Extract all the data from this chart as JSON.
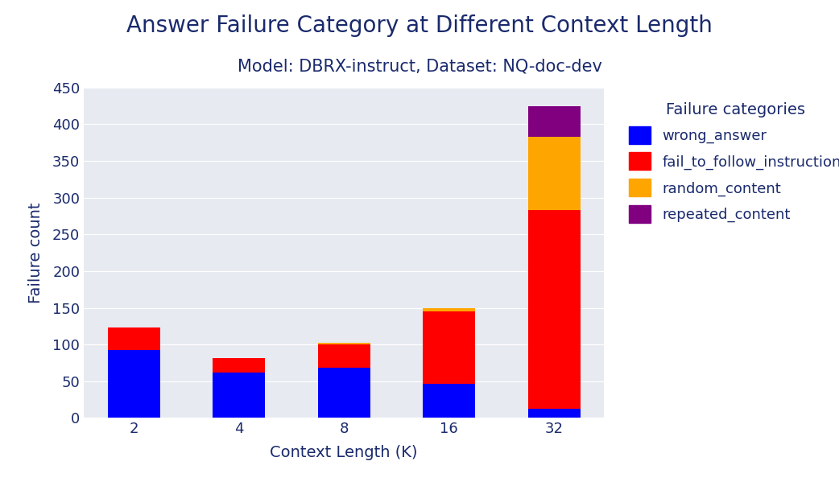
{
  "title": "Answer Failure Category at Different Context Length",
  "subtitle": "Model: DBRX-instruct, Dataset: NQ-doc-dev",
  "xlabel": "Context Length (K)",
  "ylabel": "Failure count",
  "categories": [
    2,
    4,
    8,
    16,
    32
  ],
  "series": {
    "wrong_answer": [
      93,
      62,
      68,
      47,
      13
    ],
    "fail_to_follow_instruction": [
      30,
      20,
      32,
      98,
      270
    ],
    "random_content": [
      0,
      0,
      2,
      5,
      100
    ],
    "repeated_content": [
      0,
      0,
      0,
      0,
      42
    ]
  },
  "colors": {
    "wrong_answer": "#0000ff",
    "fail_to_follow_instruction": "#ff0000",
    "random_content": "#ffa500",
    "repeated_content": "#800080"
  },
  "legend_title": "Failure categories",
  "ylim": [
    0,
    450
  ],
  "plot_bg_color": "#e8eaf2",
  "fig_bg_color": "#ffffff",
  "title_color": "#1a2a6c",
  "label_color": "#1a2a6c",
  "tick_color": "#1a2a6c",
  "title_fontsize": 20,
  "subtitle_fontsize": 15,
  "axis_label_fontsize": 14,
  "tick_fontsize": 13,
  "legend_fontsize": 13,
  "legend_title_fontsize": 14
}
